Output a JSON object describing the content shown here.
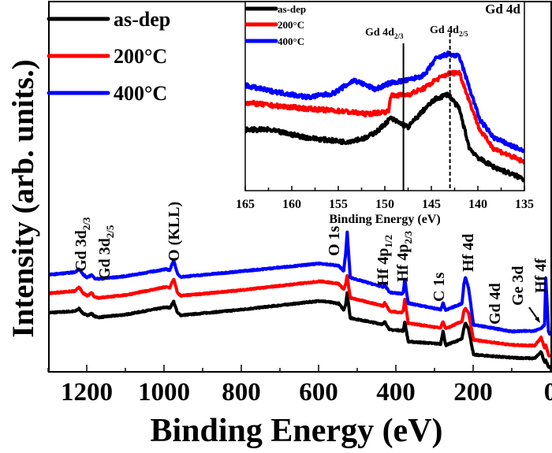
{
  "chart_data": [
    {
      "type": "line",
      "xlabel": "Binding Energy (eV)",
      "ylabel": "Intensity (arb. units.)",
      "xlim": [
        1300,
        0
      ],
      "ylim": [
        0,
        110
      ],
      "x_ticks": [
        1200,
        1000,
        800,
        600,
        400,
        200,
        0
      ],
      "x_minor_step": 100,
      "x_reversed": true,
      "grid": false,
      "legend_position": "top-left",
      "series": [
        {
          "name": "as-dep",
          "color": "#000000",
          "points": [
            [
              1300,
              17.6
            ],
            [
              1293,
              17.6
            ],
            [
              1230,
              18.0
            ],
            [
              1220,
              18.8
            ],
            [
              1210,
              17.4
            ],
            [
              1199,
              16.8
            ],
            [
              1187,
              17.3
            ],
            [
              1180,
              16.5
            ],
            [
              1169,
              16.2
            ],
            [
              1100,
              17.0
            ],
            [
              995,
              19.2
            ],
            [
              985,
              19.0
            ],
            [
              975,
              20.9
            ],
            [
              965,
              17.5
            ],
            [
              956,
              16.8
            ],
            [
              807,
              18.4
            ],
            [
              595,
              21.1
            ],
            [
              548,
              20.3
            ],
            [
              535,
              18.4
            ],
            [
              530,
              20
            ],
            [
              526,
              23.4
            ],
            [
              518,
              16
            ],
            [
              433,
              14.1
            ],
            [
              429,
              14.9
            ],
            [
              416,
              12.5
            ],
            [
              385,
              12.3
            ],
            [
              381,
              12.1
            ],
            [
              377,
              14.9
            ],
            [
              368,
              9
            ],
            [
              284,
              8.3
            ],
            [
              278,
              12.1
            ],
            [
              271,
              7.9
            ],
            [
              229,
              9.8
            ],
            [
              224,
              13
            ],
            [
              220,
              14.5
            ],
            [
              212,
              12.9
            ],
            [
              199,
              5.1
            ],
            [
              100,
              4.2
            ],
            [
              41,
              4
            ],
            [
              24,
              5.9
            ],
            [
              15,
              2.8
            ],
            [
              12,
              3.5
            ],
            [
              5,
              1.5
            ],
            [
              0,
              1.2
            ]
          ]
        },
        {
          "name": "200°C",
          "color": "#ff0000",
          "points": [
            [
              1300,
              23.4
            ],
            [
              1293,
              23.4
            ],
            [
              1230,
              24
            ],
            [
              1220,
              25.2
            ],
            [
              1210,
              23.4
            ],
            [
              1199,
              22.6
            ],
            [
              1187,
              23.5
            ],
            [
              1180,
              22.3
            ],
            [
              1169,
              22
            ],
            [
              1100,
              22.8
            ],
            [
              995,
              25.2
            ],
            [
              985,
              25
            ],
            [
              975,
              27.6
            ],
            [
              965,
              23.4
            ],
            [
              956,
              22.6
            ],
            [
              807,
              24.2
            ],
            [
              595,
              26.9
            ],
            [
              548,
              26.2
            ],
            [
              535,
              24.5
            ],
            [
              530,
              26
            ],
            [
              526,
              28.5
            ],
            [
              518,
              22
            ],
            [
              433,
              19.6
            ],
            [
              429,
              20.6
            ],
            [
              416,
              18
            ],
            [
              385,
              17.6
            ],
            [
              381,
              18
            ],
            [
              377,
              21.5
            ],
            [
              368,
              14.5
            ],
            [
              284,
              13
            ],
            [
              278,
              15
            ],
            [
              271,
              12.8
            ],
            [
              229,
              15
            ],
            [
              224,
              18
            ],
            [
              220,
              18.8
            ],
            [
              212,
              17.5
            ],
            [
              199,
              9.5
            ],
            [
              100,
              8
            ],
            [
              41,
              7.8
            ],
            [
              24,
              10.2
            ],
            [
              15,
              7
            ],
            [
              12,
              8
            ],
            [
              5,
              5
            ],
            [
              0,
              4.5
            ]
          ]
        },
        {
          "name": "400°C",
          "color": "#0000ff",
          "points": [
            [
              1300,
              28.9
            ],
            [
              1293,
              28.9
            ],
            [
              1230,
              29.6
            ],
            [
              1220,
              30.6
            ],
            [
              1210,
              29
            ],
            [
              1199,
              28
            ],
            [
              1187,
              28.8
            ],
            [
              1180,
              27.8
            ],
            [
              1169,
              27.6
            ],
            [
              1100,
              28.4
            ],
            [
              995,
              30.5
            ],
            [
              985,
              30.2
            ],
            [
              975,
              33.2
            ],
            [
              965,
              29
            ],
            [
              956,
              28.2
            ],
            [
              807,
              29.8
            ],
            [
              595,
              32.2
            ],
            [
              548,
              31.5
            ],
            [
              535,
              30
            ],
            [
              530,
              35
            ],
            [
              526,
              41.4
            ],
            [
              518,
              28
            ],
            [
              433,
              25.2
            ],
            [
              429,
              25.8
            ],
            [
              416,
              23.6
            ],
            [
              385,
              23.2
            ],
            [
              381,
              23.4
            ],
            [
              377,
              27.6
            ],
            [
              368,
              20.4
            ],
            [
              284,
              18.5
            ],
            [
              278,
              20.5
            ],
            [
              271,
              18.3
            ],
            [
              229,
              20.3
            ],
            [
              224,
              26
            ],
            [
              220,
              28.1
            ],
            [
              212,
              25
            ],
            [
              199,
              14
            ],
            [
              100,
              12
            ],
            [
              41,
              12.2
            ],
            [
              24,
              13
            ],
            [
              15,
              14
            ],
            [
              12,
              27.7
            ],
            [
              5,
              12
            ],
            [
              0,
              11
            ]
          ]
        }
      ],
      "annotations": [
        {
          "text": "Gd 3d",
          "sub": "2/3"
        },
        {
          "text": "Gd 3d",
          "sub": "2/5"
        },
        {
          "text": "O (KLL)",
          "sub": ""
        },
        {
          "text": "O 1s",
          "sub": ""
        },
        {
          "text": "Hf 4p",
          "sub": "1/2"
        },
        {
          "text": "Hf 4p",
          "sub": "2/3"
        },
        {
          "text": "C 1s",
          "sub": ""
        },
        {
          "text": "Hf 4d",
          "sub": ""
        },
        {
          "text": "Gd 4d",
          "sub": ""
        },
        {
          "text": "Ge 3d",
          "sub": ""
        },
        {
          "text": "Hf 4f",
          "sub": ""
        }
      ]
    },
    {
      "type": "line",
      "title": "Gd 4d",
      "xlabel": "Binding Energy (eV)",
      "xlim": [
        165,
        135
      ],
      "ylim": [
        0,
        100
      ],
      "x_ticks": [
        165,
        160,
        155,
        150,
        145,
        140,
        135
      ],
      "x_minor_step": 2.5,
      "x_reversed": true,
      "grid": false,
      "legend_position": "top-left",
      "series": [
        {
          "name": "as-dep",
          "color": "#000000",
          "points": [
            [
              165,
              32.2
            ],
            [
              162.5,
              32.2
            ],
            [
              158.2,
              27.9
            ],
            [
              154.3,
              25.8
            ],
            [
              152,
              27.9
            ],
            [
              150.6,
              32.2
            ],
            [
              149.4,
              38.3
            ],
            [
              147.5,
              33.6
            ],
            [
              145.7,
              43.3
            ],
            [
              144.6,
              48.3
            ],
            [
              143.2,
              51.1
            ],
            [
              142,
              43.3
            ],
            [
              140.9,
              22.3
            ],
            [
              139.8,
              16.8
            ],
            [
              138.3,
              12.6
            ],
            [
              135.2,
              6.4
            ],
            [
              135,
              6
            ]
          ]
        },
        {
          "name": "200°C",
          "color": "#ff0000",
          "points": [
            [
              165,
              46.6
            ],
            [
              162.5,
              45.2
            ],
            [
              158.2,
              43.3
            ],
            [
              154.3,
              41.9
            ],
            [
              152,
              40.5
            ],
            [
              149.6,
              41.9
            ],
            [
              149.4,
              50.1
            ],
            [
              147.5,
              50.8
            ],
            [
              145.7,
              54.3
            ],
            [
              144.6,
              58.4
            ],
            [
              143.2,
              61.8
            ],
            [
              142,
              62.6
            ],
            [
              140.9,
              47.3
            ],
            [
              139.8,
              32.2
            ],
            [
              138.3,
              22.3
            ],
            [
              135.2,
              15.5
            ],
            [
              135,
              15
            ]
          ]
        },
        {
          "name": "400°C",
          "color": "#0000ff",
          "points": [
            [
              165,
              55.6
            ],
            [
              162.5,
              52.9
            ],
            [
              158.2,
              49.4
            ],
            [
              155.5,
              51.5
            ],
            [
              153.3,
              58.4
            ],
            [
              151,
              53.6
            ],
            [
              149.4,
              57
            ],
            [
              147.5,
              58.4
            ],
            [
              145.7,
              61.2
            ],
            [
              144.6,
              69.5
            ],
            [
              143.2,
              72.3
            ],
            [
              142,
              70.9
            ],
            [
              140.9,
              54.3
            ],
            [
              139.8,
              37.7
            ],
            [
              138.3,
              28
            ],
            [
              135.2,
              21.1
            ],
            [
              135,
              20.5
            ]
          ]
        }
      ],
      "reference_lines": [
        {
          "label": "Gd 4d",
          "sub": "2/3",
          "x": 148,
          "style": "solid"
        },
        {
          "label": "Gd 4d",
          "sub": "2/5",
          "x": 143,
          "style": "dashed"
        }
      ]
    }
  ]
}
